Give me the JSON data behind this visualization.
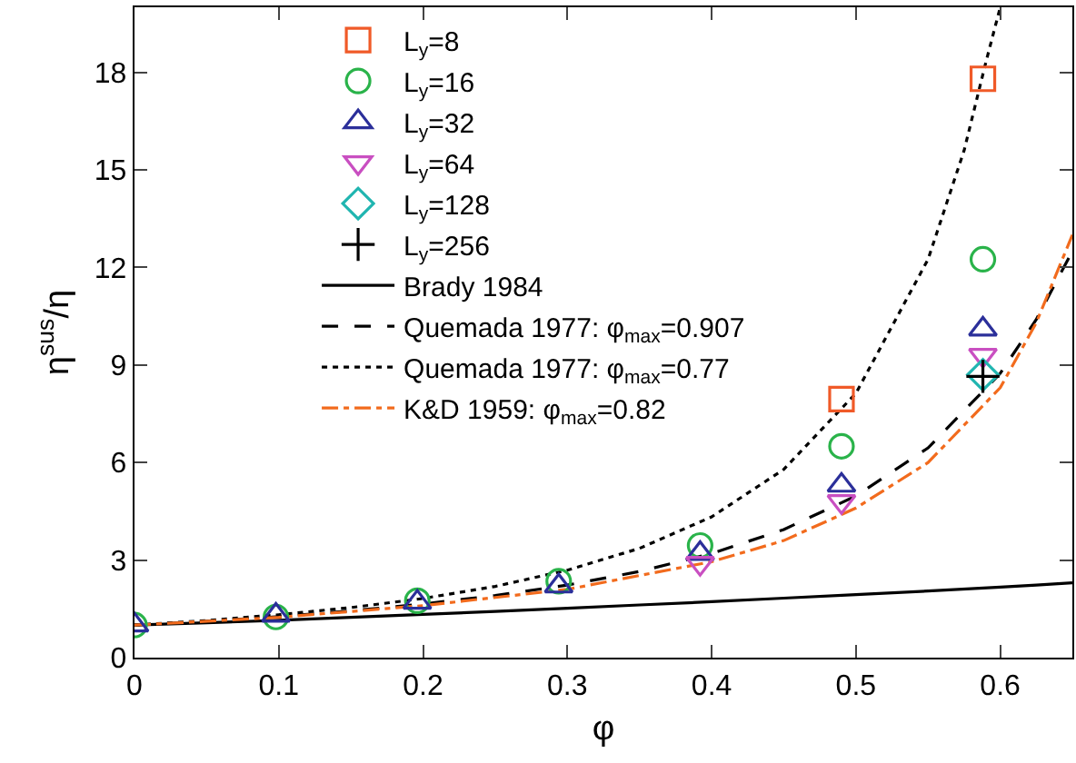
{
  "chart_data": {
    "type": "scatter",
    "xlabel": "φ",
    "ylabel": "η$^{sus}$/η",
    "xlim": [
      0,
      0.65
    ],
    "ylim": [
      0,
      20
    ],
    "xticks": [
      0,
      0.1,
      0.2,
      0.3,
      0.4,
      0.5,
      0.6
    ],
    "yticks": [
      0,
      3,
      6,
      9,
      12,
      15,
      18
    ],
    "grid": false,
    "legend": "top",
    "x": [
      0,
      0.098,
      0.196,
      0.294,
      0.392,
      0.49,
      0.588
    ],
    "series": [
      {
        "name": "L$_{y}$=8",
        "color": "#f05a28",
        "marker": "square",
        "values": [
          null,
          null,
          null,
          null,
          null,
          7.95,
          17.8
        ]
      },
      {
        "name": "L$_{y}$=16",
        "color": "#2ab34a",
        "marker": "circle",
        "values": [
          1.0,
          1.25,
          1.75,
          2.35,
          3.45,
          6.5,
          12.25
        ]
      },
      {
        "name": "L$_{y}$=32",
        "color": "#2b2f9a",
        "marker": "triangle",
        "values": [
          1.0,
          1.3,
          1.7,
          2.2,
          3.2,
          5.3,
          10.1
        ]
      },
      {
        "name": "L$_{y}$=64",
        "color": "#c94fc1",
        "marker": "triangle-down",
        "values": [
          null,
          null,
          null,
          null,
          2.9,
          4.8,
          9.3
        ]
      },
      {
        "name": "L$_{y}$=128",
        "color": "#20b5b0",
        "marker": "diamond",
        "values": [
          null,
          null,
          null,
          null,
          null,
          null,
          8.7
        ]
      },
      {
        "name": "L$_{y}$=256",
        "color": "#000000",
        "marker": "cross",
        "values": [
          null,
          null,
          null,
          null,
          null,
          null,
          8.65
        ]
      },
      {
        "name": "Brady 1984",
        "type": "line",
        "color": "#000000",
        "line_style": "solid",
        "marker": "none",
        "x": [
          0,
          0.05,
          0.1,
          0.15,
          0.2,
          0.25,
          0.3,
          0.35,
          0.4,
          0.45,
          0.5,
          0.55,
          0.6,
          0.625,
          0.65
        ],
        "values": [
          1,
          1.07,
          1.15,
          1.24,
          1.33,
          1.42,
          1.52,
          1.62,
          1.72,
          1.83,
          1.94,
          2.05,
          2.17,
          2.23,
          2.3
        ]
      },
      {
        "name": "Quemada 1977: φ$_{max}$=0.907",
        "type": "line",
        "color": "#000000",
        "line_style": "dashed",
        "marker": "none",
        "x": [
          0,
          0.05,
          0.1,
          0.15,
          0.2,
          0.25,
          0.3,
          0.35,
          0.4,
          0.45,
          0.5,
          0.55,
          0.6,
          0.625,
          0.65
        ],
        "values": [
          1,
          1.12,
          1.26,
          1.44,
          1.65,
          1.91,
          2.23,
          2.65,
          3.2,
          3.94,
          4.97,
          6.45,
          8.74,
          10.4,
          12.5
        ]
      },
      {
        "name": "Quemada 1977: φ$_{max}$=0.77",
        "type": "line",
        "color": "#000000",
        "line_style": "dotted",
        "marker": "none",
        "x": [
          0,
          0.05,
          0.1,
          0.15,
          0.2,
          0.25,
          0.3,
          0.35,
          0.4,
          0.45,
          0.5,
          0.55,
          0.575,
          0.59,
          0.6
        ],
        "values": [
          1,
          1.14,
          1.32,
          1.54,
          1.82,
          2.19,
          2.69,
          3.36,
          4.33,
          5.79,
          8.13,
          12.25,
          15.6,
          18.3,
          20
        ]
      },
      {
        "name": "K&D 1959: φ$_{max}$=0.82",
        "type": "line",
        "color": "#f26b1d",
        "line_style": "dashdot",
        "marker": "none",
        "x": [
          0,
          0.1,
          0.2,
          0.3,
          0.4,
          0.45,
          0.5,
          0.55,
          0.6,
          0.625,
          0.65
        ],
        "values": [
          1,
          1.24,
          1.6,
          2.1,
          2.95,
          3.6,
          4.6,
          6.0,
          8.3,
          10.3,
          13.0
        ]
      }
    ]
  }
}
